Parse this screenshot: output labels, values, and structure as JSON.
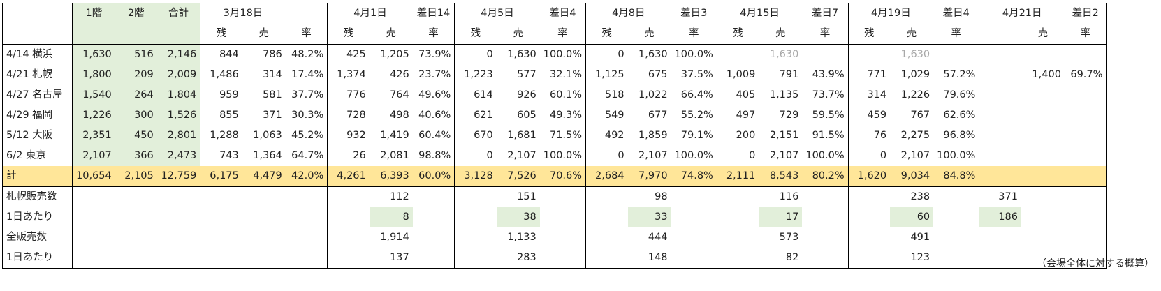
{
  "header": {
    "floor1": "1階",
    "floor2": "2階",
    "total": "合計",
    "dates": [
      "3月18日",
      "4月1日",
      "4月5日",
      "4月8日",
      "4月15日",
      "4月19日",
      "4月21日"
    ],
    "diffs": [
      "",
      "差日14",
      "差日4",
      "差日3",
      "差日7",
      "差日4",
      "差日2"
    ],
    "zan": "残",
    "uri": "売",
    "ritsu": "率"
  },
  "rows": [
    {
      "label": "4/14 横浜",
      "f1": "1,630",
      "f2": "516",
      "tot": "2,146",
      "d0": [
        "844",
        "786",
        "48.2%"
      ],
      "d1": [
        "425",
        "1,205",
        "73.9%"
      ],
      "d2": [
        "0",
        "1,630",
        "100.0%"
      ],
      "d3": [
        "0",
        "1,630",
        "100.0%"
      ],
      "d4": [
        "",
        "1,630",
        ""
      ],
      "d5": [
        "",
        "1,630",
        ""
      ],
      "d6": [
        "",
        ""
      ]
    },
    {
      "label": "4/21 札幌",
      "f1": "1,800",
      "f2": "209",
      "tot": "2,009",
      "d0": [
        "1,486",
        "314",
        "17.4%"
      ],
      "d1": [
        "1,374",
        "426",
        "23.7%"
      ],
      "d2": [
        "1,223",
        "577",
        "32.1%"
      ],
      "d3": [
        "1,125",
        "675",
        "37.5%"
      ],
      "d4": [
        "1,009",
        "791",
        "43.9%"
      ],
      "d5": [
        "771",
        "1,029",
        "57.2%"
      ],
      "d6": [
        "1,400",
        "69.7%"
      ]
    },
    {
      "label": "4/27 名古屋",
      "f1": "1,540",
      "f2": "264",
      "tot": "1,804",
      "d0": [
        "959",
        "581",
        "37.7%"
      ],
      "d1": [
        "776",
        "764",
        "49.6%"
      ],
      "d2": [
        "614",
        "926",
        "60.1%"
      ],
      "d3": [
        "518",
        "1,022",
        "66.4%"
      ],
      "d4": [
        "405",
        "1,135",
        "73.7%"
      ],
      "d5": [
        "314",
        "1,226",
        "79.6%"
      ],
      "d6": [
        "",
        ""
      ]
    },
    {
      "label": "4/29 福岡",
      "f1": "1,226",
      "f2": "300",
      "tot": "1,526",
      "d0": [
        "855",
        "371",
        "30.3%"
      ],
      "d1": [
        "728",
        "498",
        "40.6%"
      ],
      "d2": [
        "621",
        "605",
        "49.3%"
      ],
      "d3": [
        "549",
        "677",
        "55.2%"
      ],
      "d4": [
        "497",
        "729",
        "59.5%"
      ],
      "d5": [
        "459",
        "767",
        "62.6%"
      ],
      "d6": [
        "",
        ""
      ]
    },
    {
      "label": "5/12 大阪",
      "f1": "2,351",
      "f2": "450",
      "tot": "2,801",
      "d0": [
        "1,288",
        "1,063",
        "45.2%"
      ],
      "d1": [
        "932",
        "1,419",
        "60.4%"
      ],
      "d2": [
        "670",
        "1,681",
        "71.5%"
      ],
      "d3": [
        "492",
        "1,859",
        "79.1%"
      ],
      "d4": [
        "200",
        "2,151",
        "91.5%"
      ],
      "d5": [
        "76",
        "2,275",
        "96.8%"
      ],
      "d6": [
        "",
        ""
      ]
    },
    {
      "label": "6/2 東京",
      "f1": "2,107",
      "f2": "366",
      "tot": "2,473",
      "d0": [
        "743",
        "1,364",
        "64.7%"
      ],
      "d1": [
        "26",
        "2,081",
        "98.8%"
      ],
      "d2": [
        "0",
        "2,107",
        "100.0%"
      ],
      "d3": [
        "0",
        "2,107",
        "100.0%"
      ],
      "d4": [
        "0",
        "2,107",
        "100.0%"
      ],
      "d5": [
        "0",
        "2,107",
        "100.0%"
      ],
      "d6": [
        "",
        ""
      ]
    }
  ],
  "total": {
    "label": "計",
    "f1": "10,654",
    "f2": "2,105",
    "tot": "12,759",
    "d0": [
      "6,175",
      "4,479",
      "42.0%"
    ],
    "d1": [
      "4,261",
      "6,393",
      "60.0%"
    ],
    "d2": [
      "3,128",
      "7,526",
      "70.6%"
    ],
    "d3": [
      "2,684",
      "7,970",
      "74.8%"
    ],
    "d4": [
      "2,111",
      "8,543",
      "80.2%"
    ],
    "d5": [
      "1,620",
      "9,034",
      "84.8%"
    ]
  },
  "stats": [
    {
      "label": "札幌販売数",
      "vals": [
        "112",
        "151",
        "98",
        "116",
        "238",
        "371"
      ],
      "green": false
    },
    {
      "label": "1日あたり",
      "vals": [
        "8",
        "38",
        "33",
        "17",
        "60",
        "186"
      ],
      "green": true
    },
    {
      "label": "全販売数",
      "vals": [
        "1,914",
        "1,133",
        "444",
        "573",
        "491",
        ""
      ],
      "green": false
    },
    {
      "label": "1日あたり",
      "vals": [
        "137",
        "283",
        "148",
        "82",
        "123",
        ""
      ],
      "green": false
    }
  ],
  "note": "（会場全体に対する概算）"
}
